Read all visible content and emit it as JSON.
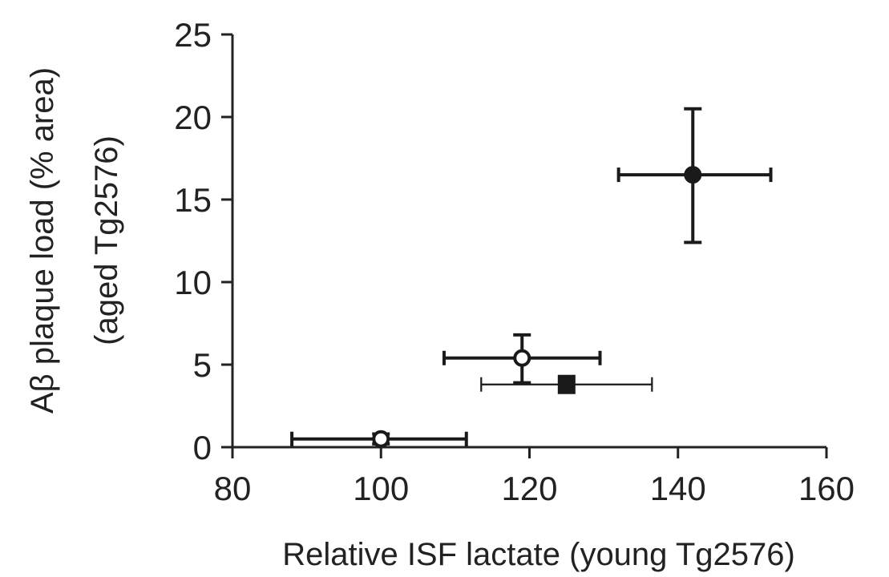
{
  "chart_data": {
    "type": "scatter",
    "xlabel": "Relative ISF lactate (young Tg2576)",
    "ylabel_line1": "Aβ plaque load (% area)",
    "ylabel_line2": "(aged Tg2576)",
    "xlim": [
      80,
      160
    ],
    "ylim": [
      0,
      25
    ],
    "x_ticks": [
      "80",
      "100",
      "120",
      "140",
      "160"
    ],
    "y_ticks": [
      "0",
      "5",
      "10",
      "15",
      "20",
      "25"
    ],
    "grid": false,
    "points": [
      {
        "x": 100,
        "y": 0.5,
        "x_err": [
          88,
          111.5
        ],
        "y_err": [
          0.2,
          0.8
        ],
        "marker": "open-circle",
        "bold": true
      },
      {
        "x": 119,
        "y": 5.4,
        "x_err": [
          108.5,
          129.5
        ],
        "y_err": [
          3.9,
          6.8
        ],
        "marker": "open-circle",
        "bold": true
      },
      {
        "x": 125,
        "y": 3.8,
        "x_err": [
          113.5,
          136.5
        ],
        "y_err": [
          3.8,
          3.8
        ],
        "marker": "filled-square",
        "bold": false
      },
      {
        "x": 142,
        "y": 16.5,
        "x_err": [
          132,
          152.5
        ],
        "y_err": [
          12.4,
          20.5
        ],
        "marker": "filled-circle",
        "bold": true
      }
    ]
  },
  "colors": {
    "axis": "#222222",
    "marker": "#1a1a1a"
  }
}
